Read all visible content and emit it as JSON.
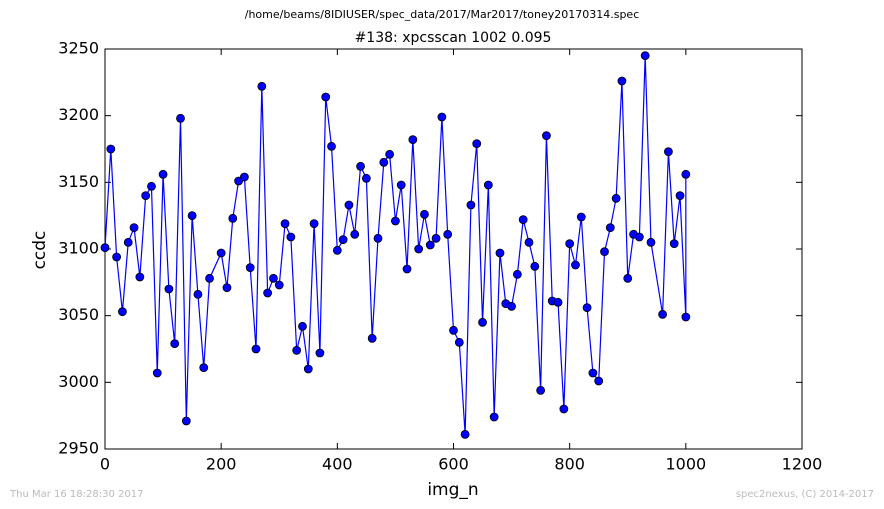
{
  "chart_data": {
    "type": "line",
    "subtitle": "/home/beams/8IDIUSER/spec_data/2017/Mar2017/toney20170314.spec",
    "title": "#138: xpcsscan 1002 0.095",
    "x_label": "img_n",
    "y_label": "ccdc",
    "footer_left": "Thu Mar 16 18:28:30 2017",
    "footer_right": "spec2nexus, (C) 2014-2017",
    "x": [
      0,
      10,
      20,
      30,
      40,
      50,
      60,
      70,
      80,
      90,
      100,
      110,
      120,
      130,
      140,
      150,
      160,
      170,
      180,
      200,
      210,
      220,
      230,
      240,
      250,
      260,
      270,
      280,
      290,
      300,
      310,
      320,
      330,
      340,
      350,
      360,
      370,
      380,
      390,
      400,
      410,
      420,
      430,
      440,
      450,
      460,
      470,
      480,
      490,
      500,
      510,
      520,
      530,
      540,
      550,
      560,
      570,
      580,
      590,
      600,
      610,
      620,
      630,
      640,
      650,
      660,
      670,
      680,
      690,
      700,
      710,
      720,
      730,
      740,
      750,
      760,
      770,
      780,
      790,
      800,
      810,
      820,
      830,
      840,
      850,
      860,
      870,
      880,
      890,
      900,
      910,
      920,
      930,
      940,
      960,
      970,
      980,
      990,
      1000,
      1000
    ],
    "series": [
      {
        "name": "ccdc",
        "color": "#0000ff",
        "values": [
          3101,
          3175,
          3094,
          3053,
          3105,
          3116,
          3079,
          3140,
          3147,
          3007,
          3156,
          3070,
          3029,
          3198,
          2971,
          3125,
          3066,
          3011,
          3078,
          3097,
          3071,
          3123,
          3151,
          3154,
          3086,
          3025,
          3222,
          3067,
          3078,
          3073,
          3119,
          3109,
          3024,
          3042,
          3010,
          3119,
          3022,
          3214,
          3177,
          3099,
          3107,
          3133,
          3111,
          3162,
          3153,
          3033,
          3108,
          3165,
          3171,
          3121,
          3148,
          3085,
          3182,
          3100,
          3126,
          3103,
          3108,
          3199,
          3111,
          3039,
          3030,
          2961,
          3133,
          3179,
          3045,
          3148,
          2974,
          3097,
          3059,
          3057,
          3081,
          3122,
          3105,
          3087,
          2994,
          3185,
          3061,
          3060,
          2980,
          3104,
          3088,
          3124,
          3056,
          3007,
          3001,
          3098,
          3116,
          3138,
          3226,
          3078,
          3111,
          3109,
          3245,
          3105,
          3051,
          3173,
          3104,
          3140,
          3049,
          3156
        ]
      }
    ],
    "xlim": [
      0,
      1200
    ],
    "xticks": [
      0,
      200,
      400,
      600,
      800,
      1000,
      1200
    ],
    "ylim": [
      2950,
      3250
    ],
    "yticks": [
      2950,
      3000,
      3050,
      3100,
      3150,
      3200,
      3250
    ]
  }
}
